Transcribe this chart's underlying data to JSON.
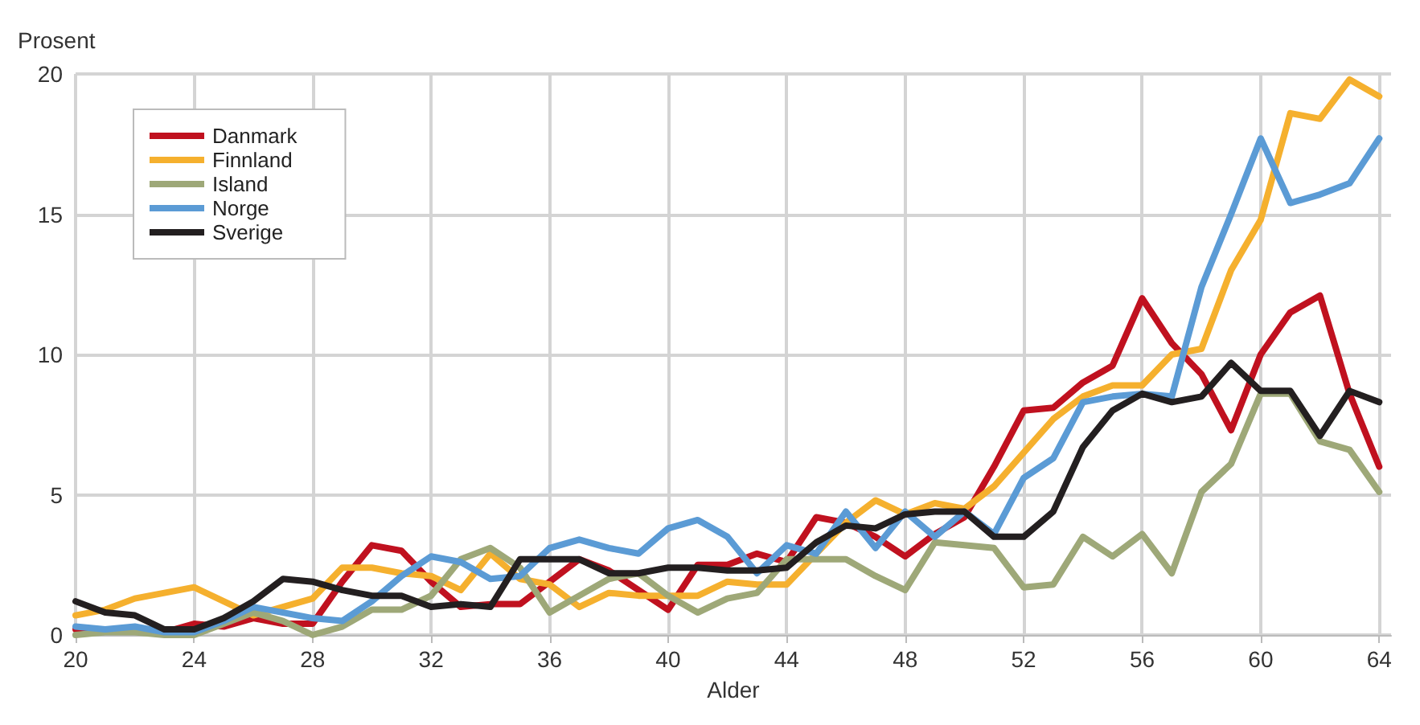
{
  "chart_data": {
    "type": "line",
    "xlabel": "Alder",
    "ylabel": "Prosent",
    "x": [
      20,
      21,
      22,
      23,
      24,
      25,
      26,
      27,
      28,
      29,
      30,
      31,
      32,
      33,
      34,
      35,
      36,
      37,
      38,
      39,
      40,
      41,
      42,
      43,
      44,
      45,
      46,
      47,
      48,
      49,
      50,
      51,
      52,
      53,
      54,
      55,
      56,
      57,
      58,
      59,
      60,
      61,
      62,
      63,
      64
    ],
    "series": [
      {
        "name": "Danmark",
        "color": "#c0111f",
        "values": [
          0.2,
          0.2,
          0.2,
          0.1,
          0.4,
          0.3,
          0.6,
          0.4,
          0.4,
          1.9,
          3.2,
          3.0,
          1.9,
          1.0,
          1.1,
          1.1,
          1.9,
          2.7,
          2.3,
          1.6,
          0.9,
          2.5,
          2.5,
          2.9,
          2.6,
          4.2,
          4.0,
          3.5,
          2.8,
          3.6,
          4.2,
          6.0,
          8.0,
          8.1,
          9.0,
          9.6,
          12.0,
          10.4,
          9.3,
          7.3,
          10.0,
          11.5,
          12.1,
          8.6,
          6.0
        ]
      },
      {
        "name": "Finnland",
        "color": "#f5b02e",
        "values": [
          0.7,
          0.9,
          1.3,
          1.5,
          1.7,
          1.2,
          0.7,
          1.0,
          1.3,
          2.4,
          2.4,
          2.2,
          2.1,
          1.6,
          2.9,
          2.0,
          1.8,
          1.0,
          1.5,
          1.4,
          1.4,
          1.4,
          1.9,
          1.8,
          1.8,
          2.9,
          4.0,
          4.8,
          4.3,
          4.7,
          4.5,
          5.3,
          6.5,
          7.7,
          8.5,
          8.9,
          8.9,
          10.0,
          10.2,
          13.0,
          14.8,
          18.6,
          18.4,
          19.8,
          19.2
        ]
      },
      {
        "name": "Island",
        "color": "#9ea878",
        "values": [
          0.0,
          0.1,
          0.1,
          0.0,
          0.0,
          0.4,
          0.8,
          0.5,
          0.0,
          0.3,
          0.9,
          0.9,
          1.4,
          2.7,
          3.1,
          2.4,
          0.8,
          1.4,
          2.0,
          2.2,
          1.4,
          0.8,
          1.3,
          1.5,
          2.7,
          2.7,
          2.7,
          2.1,
          1.6,
          3.3,
          3.2,
          3.1,
          1.7,
          1.8,
          3.5,
          2.8,
          3.6,
          2.2,
          5.1,
          6.1,
          8.6,
          8.6,
          6.9,
          6.6,
          5.1
        ]
      },
      {
        "name": "Norge",
        "color": "#5b9bd5",
        "values": [
          0.3,
          0.2,
          0.3,
          0.1,
          0.1,
          0.5,
          1.0,
          0.8,
          0.6,
          0.5,
          1.2,
          2.1,
          2.8,
          2.6,
          2.0,
          2.1,
          3.1,
          3.4,
          3.1,
          2.9,
          3.8,
          4.1,
          3.5,
          2.2,
          3.2,
          2.9,
          4.4,
          3.1,
          4.4,
          3.5,
          4.4,
          3.6,
          5.6,
          6.3,
          8.3,
          8.5,
          8.6,
          8.5,
          12.4,
          15.0,
          17.7,
          15.4,
          15.7,
          16.1,
          17.7
        ]
      },
      {
        "name": "Sverige",
        "color": "#231f20",
        "values": [
          1.2,
          0.8,
          0.7,
          0.2,
          0.2,
          0.6,
          1.2,
          2.0,
          1.9,
          1.6,
          1.4,
          1.4,
          1.0,
          1.1,
          1.0,
          2.7,
          2.7,
          2.7,
          2.2,
          2.2,
          2.4,
          2.4,
          2.3,
          2.3,
          2.4,
          3.3,
          3.9,
          3.8,
          4.3,
          4.4,
          4.4,
          3.5,
          3.5,
          4.4,
          6.7,
          8.0,
          8.6,
          8.3,
          8.5,
          9.7,
          8.7,
          8.7,
          7.1,
          8.7,
          8.3
        ]
      }
    ],
    "xlim": [
      20,
      64.4
    ],
    "xticks": [
      20,
      24,
      28,
      32,
      36,
      40,
      44,
      48,
      52,
      56,
      60,
      64
    ],
    "ylim": [
      0,
      20
    ],
    "yticks": [
      0,
      5,
      10,
      15,
      20
    ],
    "grid": true,
    "legend": "top left",
    "marker": "none",
    "line_style": "solid"
  }
}
